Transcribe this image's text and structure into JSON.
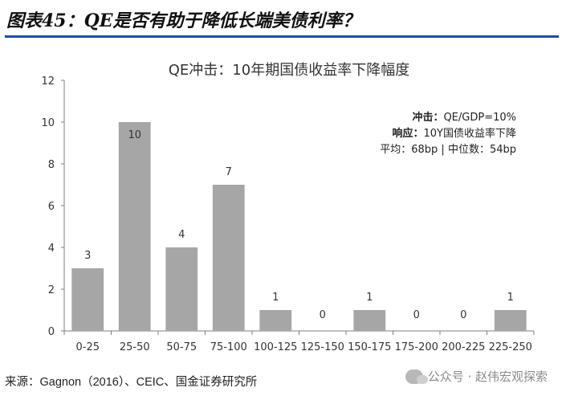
{
  "figure_title": "图表45：QE是否有助于降低长端美债利率？",
  "source_text": "来源：Gagnon（2016）、CEIC、国金证券研究所",
  "watermark": {
    "icon": "wechat-icon",
    "text": "公众号 · 赵伟宏观探索"
  },
  "annotation": {
    "line1_label": "冲击：",
    "line1_value": "QE/GDP=10%",
    "line2_label": "响应：",
    "line2_value": "10Y国债收益率下降",
    "line3": "平均：68bp | 中位数：54bp"
  },
  "colors": {
    "bar": "#a6a6a6",
    "title_rule": "#1f4e9e"
  },
  "chart_data": {
    "type": "bar",
    "title": "QE冲击：10年期国债收益率下降幅度",
    "categories": [
      "0-25",
      "25-50",
      "50-75",
      "75-100",
      "100-125",
      "125-150",
      "150-175",
      "175-200",
      "200-225",
      "225-250"
    ],
    "values": [
      3,
      10,
      4,
      7,
      1,
      0,
      1,
      0,
      0,
      1
    ],
    "data_labels": [
      "3",
      "10",
      "4",
      "7",
      "1",
      "0",
      "1",
      "0",
      "0",
      "1"
    ],
    "ylim": [
      0,
      12
    ],
    "yticks": [
      0,
      2,
      4,
      6,
      8,
      10,
      12
    ],
    "xlabel": "",
    "ylabel": "",
    "grid": false,
    "legend": "none"
  }
}
